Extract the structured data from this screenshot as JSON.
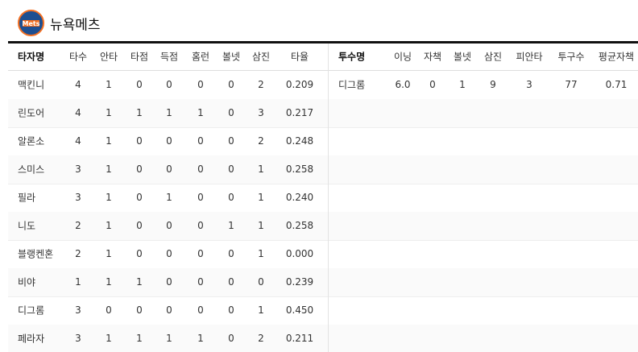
{
  "header": {
    "title": "뉴욕메츠"
  },
  "batting": {
    "columns": [
      "타자명",
      "타수",
      "안타",
      "타점",
      "득점",
      "홈런",
      "볼넷",
      "삼진",
      "타율"
    ],
    "rows": [
      [
        "맥킨니",
        "4",
        "1",
        "0",
        "0",
        "0",
        "0",
        "2",
        "0.209"
      ],
      [
        "린도어",
        "4",
        "1",
        "1",
        "1",
        "1",
        "0",
        "3",
        "0.217"
      ],
      [
        "알론소",
        "4",
        "1",
        "0",
        "0",
        "0",
        "0",
        "2",
        "0.248"
      ],
      [
        "스미스",
        "3",
        "1",
        "0",
        "0",
        "0",
        "0",
        "1",
        "0.258"
      ],
      [
        "필라",
        "3",
        "1",
        "0",
        "1",
        "0",
        "0",
        "1",
        "0.240"
      ],
      [
        "니도",
        "2",
        "1",
        "0",
        "0",
        "0",
        "1",
        "1",
        "0.258"
      ],
      [
        "블랭켄혼",
        "2",
        "1",
        "0",
        "0",
        "0",
        "0",
        "1",
        "0.000"
      ],
      [
        "비야",
        "1",
        "1",
        "1",
        "0",
        "0",
        "0",
        "0",
        "0.239"
      ],
      [
        "디그롬",
        "3",
        "0",
        "0",
        "0",
        "0",
        "0",
        "1",
        "0.450"
      ],
      [
        "페라자",
        "3",
        "1",
        "1",
        "1",
        "1",
        "0",
        "2",
        "0.211"
      ]
    ]
  },
  "pitching": {
    "columns": [
      "투수명",
      "이닝",
      "자책",
      "볼넷",
      "삼진",
      "피안타",
      "투구수",
      "평균자책"
    ],
    "rows": [
      [
        "디그롬",
        "6.0",
        "0",
        "1",
        "9",
        "3",
        "77",
        "0.71"
      ]
    ]
  }
}
